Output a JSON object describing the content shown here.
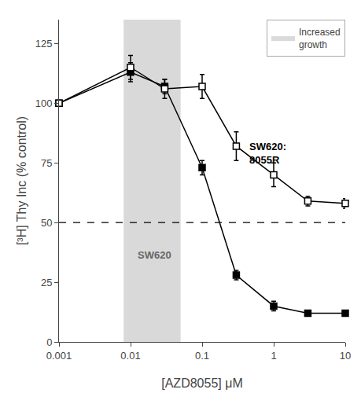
{
  "chart_data": {
    "type": "line",
    "xlabel": "[AZD8055] μM",
    "ylabel": "[³H] Thy Inc (% control)",
    "log": "x",
    "xlim": [
      0.001,
      10
    ],
    "ylim": [
      0,
      135
    ],
    "xticks": [
      0.001,
      0.01,
      0.1,
      1,
      10
    ],
    "yticks": [
      0,
      25,
      50,
      75,
      100,
      125
    ],
    "grid": false,
    "legend": "upper right",
    "x": [
      0.001,
      0.01,
      0.03,
      0.1,
      0.3,
      1,
      3,
      10
    ],
    "series": [
      {
        "name": "SW620",
        "color": "#000000",
        "marker": "square",
        "values": [
          100,
          113,
          107,
          73,
          28,
          15,
          12,
          12
        ],
        "errors": [
          0,
          4,
          3,
          3,
          2,
          2,
          1,
          1
        ]
      },
      {
        "name": "SW620:\n8055R",
        "color": "#000000",
        "marker": "square-open",
        "values": [
          100,
          115,
          106,
          107,
          82,
          70,
          59,
          58
        ],
        "errors": [
          0,
          5,
          4,
          5,
          6,
          5,
          2,
          2
        ]
      }
    ],
    "shaded_regions": [
      {
        "x0": 0.008,
        "x1": 0.05,
        "label": "Increased\ngrowth",
        "color": "#bbbbbb"
      }
    ],
    "reference_lines": [
      {
        "y": 50,
        "line_style": "dashed",
        "color": "#000000"
      }
    ]
  }
}
